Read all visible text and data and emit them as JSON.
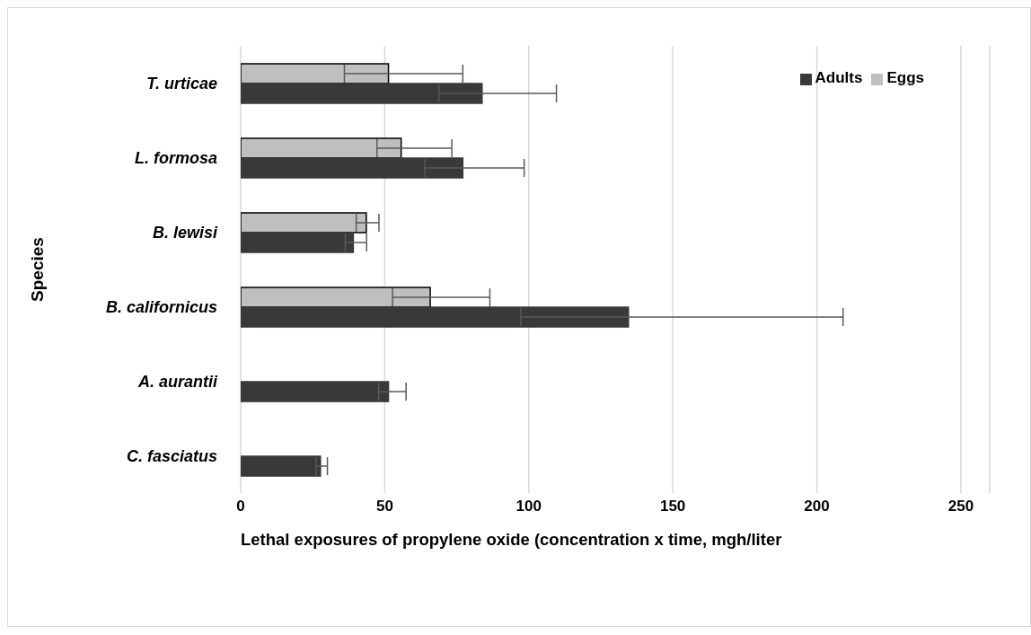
{
  "chart_data": {
    "type": "bar",
    "orientation": "horizontal",
    "xlabel": "Lethal exposures of propylene oxide (concentration x time, mgh/liter",
    "ylabel": "Species",
    "categories": [
      "T. urticae",
      "L. formosa",
      "B. lewisi",
      "B. californicus",
      "A. aurantii",
      "C. fasciatus"
    ],
    "series": [
      {
        "name": "Eggs",
        "color": "#bfbfbf",
        "values": [
          51.3,
          55.7,
          43.6,
          65.8,
          null,
          null
        ],
        "errors": [
          [
            36.0,
            77.1
          ],
          [
            47.3,
            73.3
          ],
          [
            40.1,
            48.0
          ],
          [
            52.7,
            86.5
          ],
          null,
          null
        ]
      },
      {
        "name": "Adults",
        "color": "#3a3838",
        "values": [
          83.8,
          77.1,
          39.1,
          134.6,
          51.3,
          27.7
        ],
        "errors": [
          [
            68.8,
            109.6
          ],
          [
            63.9,
            98.4
          ],
          [
            36.3,
            43.7
          ],
          [
            97.2,
            209.1
          ],
          [
            47.9,
            57.4
          ],
          [
            26.2,
            30.1
          ]
        ]
      }
    ],
    "xlim": [
      0,
      260
    ],
    "xticks": [
      0,
      50,
      100,
      150,
      200,
      250
    ],
    "grid": "x",
    "legend": "top right"
  }
}
